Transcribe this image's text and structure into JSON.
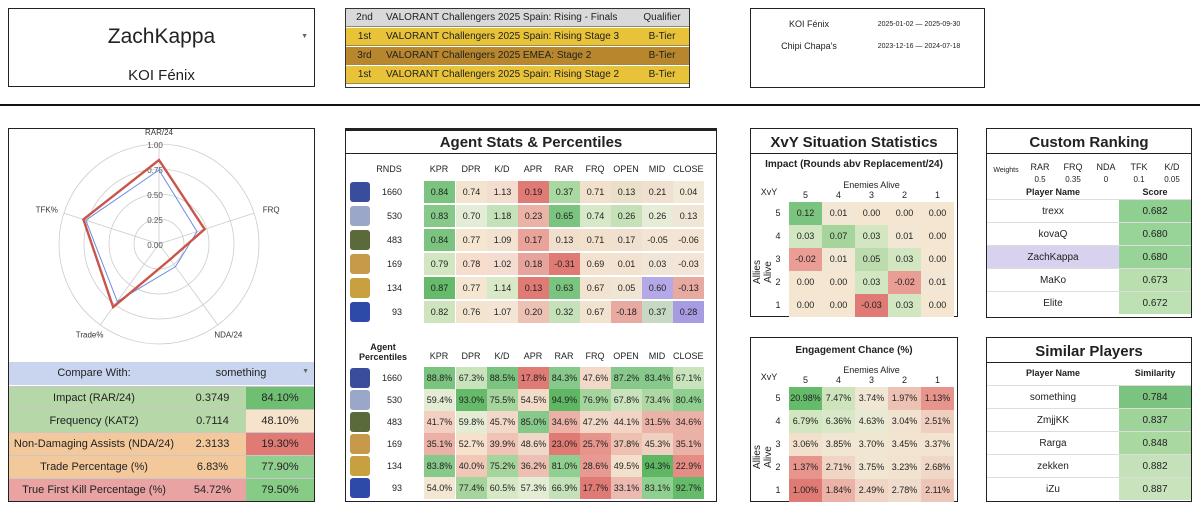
{
  "player": {
    "name": "ZachKappa",
    "team": "KOI Fénix"
  },
  "results": [
    {
      "place": "2nd",
      "event": "VALORANT Challengers 2025 Spain: Rising - Finals",
      "tier": "Qualifier",
      "bg": "#d9d9d9"
    },
    {
      "place": "1st",
      "event": "VALORANT Challengers 2025 Spain: Rising Stage 3",
      "tier": "B-Tier",
      "bg": "#e8c33a"
    },
    {
      "place": "3rd",
      "event": "VALORANT Challengers 2025 EMEA: Stage 2",
      "tier": "B-Tier",
      "bg": "#b8862c"
    },
    {
      "place": "1st",
      "event": "VALORANT Challengers 2025 Spain: Rising Stage 2",
      "tier": "B-Tier",
      "bg": "#e8c33a"
    }
  ],
  "teams": [
    {
      "name": "KOI Fénix",
      "dates": "2025-01-02 — 2025-09-30"
    },
    {
      "name": "Chipi Chapa's",
      "dates": "2023-12-16 — 2024-07-18"
    }
  ],
  "radar": {
    "axes": [
      "RAR/24",
      "FRQ",
      "NDA/24",
      "Trade%",
      "TFK%"
    ],
    "ring_labels": [
      "1.00",
      "0.75",
      "0.50",
      "0.25",
      "0.00"
    ],
    "player_values": [
      0.84,
      0.48,
      0.19,
      0.78,
      0.795
    ],
    "compare_values": [
      0.74,
      0.4,
      0.28,
      0.71,
      0.77
    ]
  },
  "compare": {
    "label": "Compare With:",
    "value": "something"
  },
  "stats": [
    {
      "label": "Impact (RAR/24)",
      "value": "0.3749",
      "pct": "84.10%",
      "label_bg": "#b6d7a8",
      "pct_bg": "#6fbf73"
    },
    {
      "label": "Frequency (KAT2)",
      "value": "0.7114",
      "pct": "48.10%",
      "label_bg": "#b6d7a8",
      "pct_bg": "#f6e3cc"
    },
    {
      "label": "Non-Damaging Assists (NDA/24)",
      "value": "2.3133",
      "pct": "19.30%",
      "label_bg": "#f3c99b",
      "pct_bg": "#e07a74"
    },
    {
      "label": "Trade Percentage (%)",
      "value": "6.83%",
      "pct": "77.90%",
      "label_bg": "#f3c99b",
      "pct_bg": "#8fcf8f"
    },
    {
      "label": "True First Kill Percentage (%)",
      "value": "54.72%",
      "pct": "79.50%",
      "label_bg": "#e9a3a3",
      "pct_bg": "#86cb86"
    }
  ],
  "agent": {
    "title": "Agent Stats & Percentiles",
    "headers": [
      "RNDS",
      "KPR",
      "DPR",
      "K/D",
      "APR",
      "RAR",
      "FRQ",
      "OPEN",
      "MID",
      "CLOSE"
    ],
    "stat_rows": [
      [
        "1660",
        "0.84",
        "0.74",
        "1.13",
        "0.19",
        "0.37",
        "0.71",
        "0.13",
        "0.21",
        "0.04"
      ],
      [
        "530",
        "0.83",
        "0.70",
        "1.18",
        "0.23",
        "0.65",
        "0.74",
        "0.26",
        "0.26",
        "0.13"
      ],
      [
        "483",
        "0.84",
        "0.77",
        "1.09",
        "0.17",
        "0.13",
        "0.71",
        "0.17",
        "-0.05",
        "-0.06"
      ],
      [
        "169",
        "0.79",
        "0.78",
        "1.02",
        "0.18",
        "-0.31",
        "0.69",
        "0.01",
        "0.03",
        "-0.03"
      ],
      [
        "134",
        "0.87",
        "0.77",
        "1.14",
        "0.13",
        "0.63",
        "0.67",
        "0.05",
        "0.60",
        "-0.13"
      ],
      [
        "93",
        "0.82",
        "0.76",
        "1.07",
        "0.20",
        "0.32",
        "0.67",
        "-0.18",
        "0.37",
        "0.28"
      ]
    ],
    "stat_colors": [
      [
        "#7bc47f",
        "#f3e4d0",
        "#f2ddcf",
        "#e07a74",
        "#a9d8a1",
        "#f0e0cc",
        "#eadfc8",
        "#f0e0d0",
        "#f2ead8"
      ],
      [
        "#86c98a",
        "#e3ecd6",
        "#c5e1b9",
        "#ebb3a8",
        "#7bc47f",
        "#d6e8c8",
        "#c6e1b8",
        "#e6ecd6",
        "#f0e6d6"
      ],
      [
        "#7bc47f",
        "#f5e6d2",
        "#f2e2d0",
        "#e9a39a",
        "#f0dfcc",
        "#f0e0cc",
        "#f0e0d0",
        "#f3e4d4",
        "#f3e4d4"
      ],
      [
        "#d2e6c2",
        "#f6ddcc",
        "#f4dcd0",
        "#e6a49c",
        "#e07a74",
        "#f4e2d0",
        "#f3e2d0",
        "#f0e6d8",
        "#f3e6d6"
      ],
      [
        "#66bb6a",
        "#f5e6d2",
        "#d9e9c8",
        "#e07a74",
        "#7bc47f",
        "#f2e2d0",
        "#f0e4d4",
        "#b5a8e6",
        "#e7a9a0"
      ],
      [
        "#cde4bd",
        "#f3e4d0",
        "#f3e4d4",
        "#eec1b5",
        "#c5e1b9",
        "#f2e2d0",
        "#e7a9a0",
        "#c7d8c4",
        "#a79ce2"
      ]
    ],
    "pct_header_label": [
      "Agent",
      "Percentiles"
    ],
    "pct_rows": [
      [
        "1660",
        "88.8%",
        "67.3%",
        "88.5%",
        "17.8%",
        "84.3%",
        "47.6%",
        "87.2%",
        "83.4%",
        "67.1%"
      ],
      [
        "530",
        "59.4%",
        "93.0%",
        "75.5%",
        "54.5%",
        "94.9%",
        "76.9%",
        "67.8%",
        "73.4%",
        "80.4%"
      ],
      [
        "483",
        "41.7%",
        "59.8%",
        "45.7%",
        "85.0%",
        "34.6%",
        "47.2%",
        "44.1%",
        "31.5%",
        "34.6%"
      ],
      [
        "169",
        "35.1%",
        "52.7%",
        "39.9%",
        "48.6%",
        "23.0%",
        "25.7%",
        "37.8%",
        "45.3%",
        "35.1%"
      ],
      [
        "134",
        "83.8%",
        "40.0%",
        "75.2%",
        "36.2%",
        "81.0%",
        "28.6%",
        "49.5%",
        "94.3%",
        "22.9%"
      ],
      [
        "93",
        "54.0%",
        "77.4%",
        "60.5%",
        "57.3%",
        "66.9%",
        "17.7%",
        "33.1%",
        "83.1%",
        "92.7%"
      ]
    ],
    "pct_colors": [
      [
        "#7bc47f",
        "#c9e3bc",
        "#7bc47f",
        "#e07a74",
        "#86c98a",
        "#f2d8c8",
        "#86c98a",
        "#86c98a",
        "#c9e3bc"
      ],
      [
        "#e4ecd4",
        "#66bb6a",
        "#a5d49c",
        "#f2dcc8",
        "#5fb663",
        "#a5d49c",
        "#c9e3bc",
        "#aed7a4",
        "#8fcf8f"
      ],
      [
        "#f2cfc0",
        "#e4ecd4",
        "#f2d8c8",
        "#86c98a",
        "#ecb1a6",
        "#f2d8c8",
        "#f2d4c4",
        "#ebb3a8",
        "#ecb1a6"
      ],
      [
        "#ecb1a6",
        "#f5e1cc",
        "#efc3b6",
        "#f0d8c8",
        "#e07a74",
        "#e6948c",
        "#eec0b2",
        "#f0d0c0",
        "#ecb1a6"
      ],
      [
        "#86c98a",
        "#efc8b8",
        "#a5d49c",
        "#ecbfb2",
        "#8fcf8f",
        "#e69a92",
        "#f3e0cc",
        "#5fb663",
        "#e58c85"
      ],
      [
        "#f3e6d2",
        "#a5d49c",
        "#d7e8c6",
        "#e4ecd4",
        "#c5e1b9",
        "#e07a74",
        "#ecbab0",
        "#8fcf8f",
        "#66bb6a"
      ]
    ]
  },
  "xvy": {
    "title": "XvY Situation Statistics",
    "impact_title": "Impact (Rounds abv Replacement/24)",
    "corner": "XvY",
    "enemies_label": "Enemies Alive",
    "allies_label": "Allies Alive",
    "enemy_cols": [
      "5",
      "4",
      "3",
      "2",
      "1"
    ],
    "ally_rows": [
      "5",
      "4",
      "3",
      "2",
      "1"
    ],
    "impact": [
      [
        "0.12",
        "0.01",
        "0.00",
        "0.00",
        "0.00"
      ],
      [
        "0.03",
        "0.07",
        "0.03",
        "0.01",
        "0.00"
      ],
      [
        "-0.02",
        "0.01",
        "0.05",
        "0.03",
        "0.00"
      ],
      [
        "0.00",
        "0.00",
        "0.03",
        "-0.02",
        "0.01"
      ],
      [
        "0.00",
        "0.00",
        "-0.03",
        "0.03",
        "0.00"
      ]
    ],
    "impact_colors": [
      [
        "#7bc47f",
        "#f2e6d4",
        "#f5e6d2",
        "#f5e6d2",
        "#f5e6d2"
      ],
      [
        "#d2e6c2",
        "#a5d49c",
        "#d2e6c2",
        "#f2e6d4",
        "#f5e6d2"
      ],
      [
        "#ea9d94",
        "#f2e6d4",
        "#bcdcae",
        "#d2e6c2",
        "#f5e6d2"
      ],
      [
        "#f5e6d2",
        "#f5e6d2",
        "#d2e6c2",
        "#ea9d94",
        "#f2e6d4"
      ],
      [
        "#f5e6d2",
        "#f5e6d2",
        "#e07a74",
        "#d2e6c2",
        "#f5e6d2"
      ]
    ],
    "engagement_title": "Engagement Chance (%)",
    "engagement": [
      [
        "20.98%",
        "7.47%",
        "3.74%",
        "1.97%",
        "1.13%"
      ],
      [
        "6.79%",
        "6.36%",
        "4.63%",
        "3.04%",
        "2.51%"
      ],
      [
        "3.06%",
        "3.85%",
        "3.70%",
        "3.45%",
        "3.37%"
      ],
      [
        "1.37%",
        "2.71%",
        "3.75%",
        "3.23%",
        "2.68%"
      ],
      [
        "1.00%",
        "1.84%",
        "2.49%",
        "2.78%",
        "2.11%"
      ]
    ],
    "engagement_colors": [
      [
        "#66bb6a",
        "#cde4bd",
        "#f0e6d4",
        "#eec1b5",
        "#e6948c"
      ],
      [
        "#d2e6c2",
        "#d9e9c8",
        "#e8ead4",
        "#f2e2d0",
        "#f0cfc0"
      ],
      [
        "#f2e0cc",
        "#f0e6d2",
        "#f0e6d2",
        "#f2e4d0",
        "#f2e4d0"
      ],
      [
        "#e6948c",
        "#f0d4c4",
        "#f0e6d2",
        "#f2e2d0",
        "#f0d8c8"
      ],
      [
        "#e07a74",
        "#ebb3a8",
        "#f0d4c4",
        "#f0dccc",
        "#eec6b8"
      ]
    ]
  },
  "ranking": {
    "title": "Custom Ranking",
    "weights_label": "Weights",
    "weight_names": [
      "RAR",
      "FRQ",
      "NDA",
      "TFK",
      "K/D"
    ],
    "weight_values": [
      "0.5",
      "0.35",
      "0",
      "0.1",
      "0.05"
    ],
    "col_player": "Player Name",
    "col_score": "Score",
    "rows": [
      {
        "name": "trexx",
        "score": "0.682",
        "highlight": false,
        "score_bg": "#8fcf8f"
      },
      {
        "name": "kovaQ",
        "score": "0.680",
        "highlight": false,
        "score_bg": "#98d398"
      },
      {
        "name": "ZachKappa",
        "score": "0.680",
        "highlight": true,
        "score_bg": "#98d398"
      },
      {
        "name": "MaKo",
        "score": "0.673",
        "highlight": false,
        "score_bg": "#b9dfae"
      },
      {
        "name": "Elite",
        "score": "0.672",
        "highlight": false,
        "score_bg": "#bde1b2"
      }
    ]
  },
  "similar": {
    "title": "Similar Players",
    "col_player": "Player Name",
    "col_sim": "Similarity",
    "rows": [
      {
        "name": "something",
        "score": "0.784",
        "score_bg": "#7bc47f"
      },
      {
        "name": "ZmjjKK",
        "score": "0.837",
        "score_bg": "#9ed39a"
      },
      {
        "name": "Rarga",
        "score": "0.848",
        "score_bg": "#a9d8a1"
      },
      {
        "name": "zekken",
        "score": "0.882",
        "score_bg": "#c5e1b9"
      },
      {
        "name": "iZu",
        "score": "0.887",
        "score_bg": "#c9e3bc"
      }
    ]
  }
}
